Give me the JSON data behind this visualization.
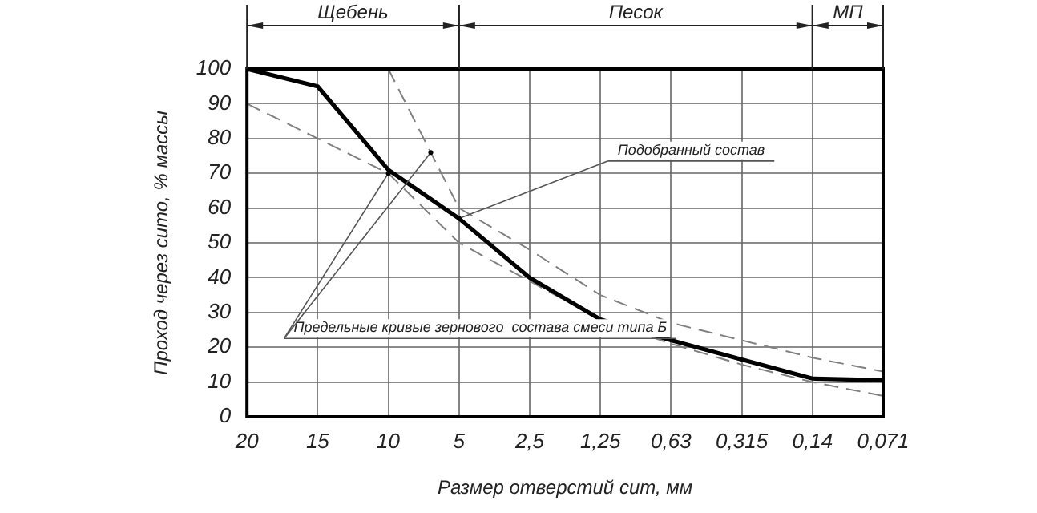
{
  "chart_data": {
    "type": "line",
    "xlabel": "Размер отверстий сит, мм",
    "ylabel": "Проход через сито, % массы",
    "categories": [
      "20",
      "15",
      "10",
      "5",
      "2,5",
      "1,25",
      "0,63",
      "0,315",
      "0,14",
      "0,071"
    ],
    "series": [
      {
        "color": "#000000",
        "line_style": "solid",
        "values": [
          100,
          95,
          71,
          57,
          40,
          28,
          22,
          16.5,
          11,
          10.5
        ]
      },
      {
        "color": "#808080",
        "line_style": "dashed",
        "values": [
          null,
          null,
          100,
          60,
          48,
          35,
          27,
          22,
          17,
          13
        ]
      },
      {
        "color": "#808080",
        "line_style": "dashed",
        "values": [
          90,
          80,
          70,
          50,
          39,
          28,
          21,
          15,
          10,
          6
        ]
      }
    ],
    "ylim": [
      0,
      100
    ],
    "yticks": [
      0,
      10,
      20,
      30,
      40,
      50,
      60,
      70,
      80,
      90,
      100
    ],
    "annotations": [
      {
        "text": "Подобранный состав",
        "x": "5",
        "y": 57
      },
      {
        "text": "Предельные кривые зернового  состава смеси типа Б",
        "x": "10",
        "y": 70
      },
      "Щебень",
      "Песок",
      "МП"
    ],
    "grid": true,
    "legend": false,
    "marker": "none"
  }
}
